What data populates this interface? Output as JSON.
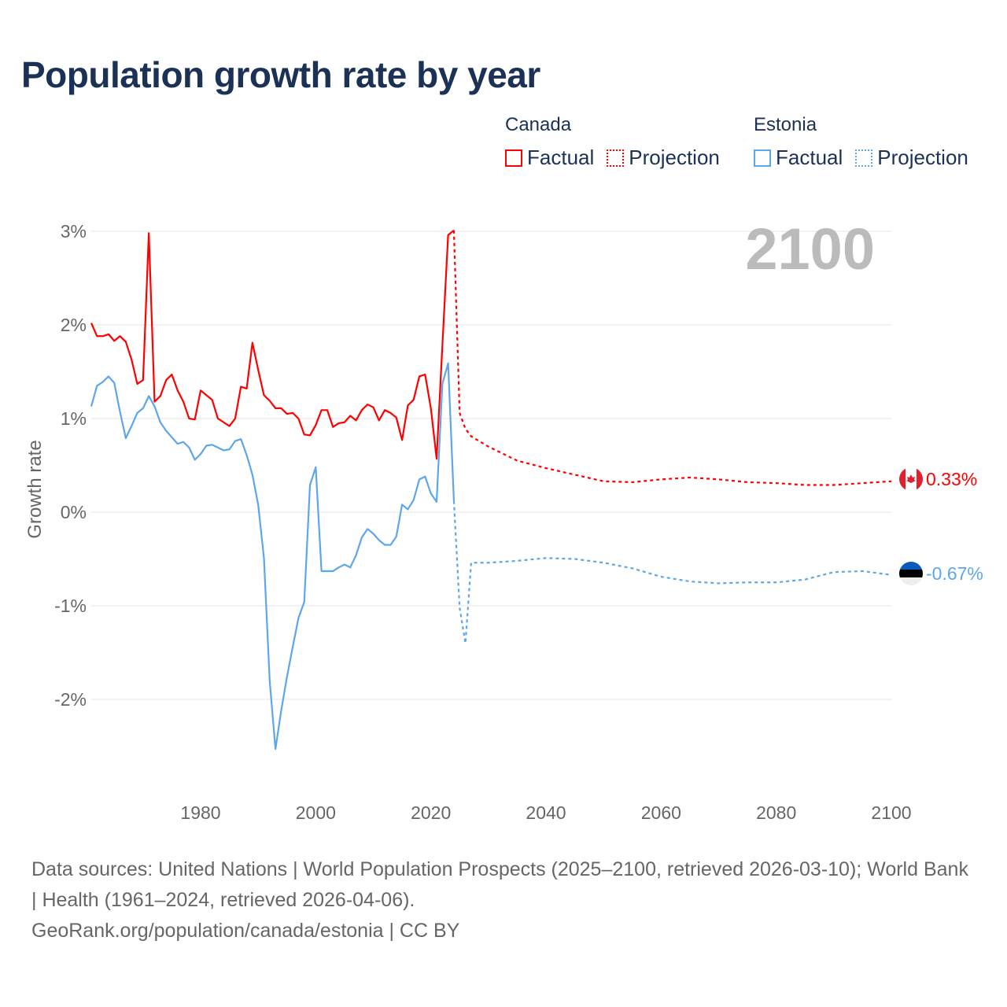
{
  "title": "Population growth rate by year",
  "legend": [
    {
      "country": "Canada",
      "color": "#ff0000",
      "factual": "Factual",
      "projection": "Projection"
    },
    {
      "country": "Estonia",
      "color": "#5ea6ea",
      "factual": "Factual",
      "projection": "Projection"
    }
  ],
  "year_label": "2100",
  "footer": {
    "sources": "Data sources: United Nations | World Population Prospects (2025–2100, retrieved 2026-03-10); World Bank | Health (1961–2024, retrieved 2026-04-06).",
    "credit": "GeoRank.org/population/canada/estonia | CC BY"
  },
  "chart_data": {
    "type": "line",
    "title": "Population growth rate by year",
    "xlabel": "",
    "ylabel": "Growth rate",
    "xlim": [
      1961,
      2100
    ],
    "ylim": [
      -3,
      3
    ],
    "xticks": [
      1980,
      2000,
      2020,
      2040,
      2060,
      2080,
      2100
    ],
    "xtick_labels": [
      "1980",
      "2000",
      "2020",
      "2040",
      "2060",
      "2080",
      "2100"
    ],
    "yticks": [
      3,
      2,
      1,
      0,
      -1,
      -2
    ],
    "ytick_labels": [
      "3%",
      "2%",
      "1%",
      "0%",
      "-1%",
      "-2%"
    ],
    "grid": true,
    "series": [
      {
        "name": "Canada",
        "color": "#ff0000",
        "end_label": "0.33%",
        "factual": {
          "start": 1961,
          "values": [
            2.02,
            1.88,
            1.88,
            1.9,
            1.83,
            1.88,
            1.82,
            1.63,
            1.37,
            1.41,
            2.98,
            1.18,
            1.24,
            1.41,
            1.47,
            1.3,
            1.18,
            1.0,
            0.99,
            1.3,
            1.25,
            1.2,
            1.0,
            0.96,
            0.92,
            1.0,
            1.34,
            1.32,
            1.81,
            1.52,
            1.25,
            1.19,
            1.11,
            1.11,
            1.05,
            1.06,
            1.0,
            0.83,
            0.82,
            0.93,
            1.09,
            1.09,
            0.91,
            0.95,
            0.96,
            1.03,
            0.98,
            1.09,
            1.15,
            1.12,
            0.98,
            1.09,
            1.06,
            1.01,
            0.77,
            1.14,
            1.2,
            1.45,
            1.47,
            1.11,
            0.57,
            1.78,
            2.96,
            3.01
          ]
        },
        "projection": {
          "x": [
            2024,
            2025,
            2026,
            2027,
            2030,
            2035,
            2040,
            2045,
            2050,
            2055,
            2060,
            2065,
            2070,
            2075,
            2080,
            2085,
            2090,
            2095,
            2100
          ],
          "values": [
            3.01,
            1.06,
            0.89,
            0.81,
            0.7,
            0.55,
            0.47,
            0.4,
            0.33,
            0.32,
            0.35,
            0.37,
            0.35,
            0.32,
            0.31,
            0.29,
            0.29,
            0.31,
            0.33
          ]
        }
      },
      {
        "name": "Estonia",
        "color": "#5ea6ea",
        "end_label": "-0.67%",
        "factual": {
          "start": 1961,
          "values": [
            1.13,
            1.35,
            1.39,
            1.45,
            1.38,
            1.07,
            0.79,
            0.92,
            1.06,
            1.11,
            1.24,
            1.13,
            0.96,
            0.87,
            0.8,
            0.73,
            0.75,
            0.69,
            0.56,
            0.62,
            0.71,
            0.72,
            0.69,
            0.66,
            0.67,
            0.76,
            0.78,
            0.61,
            0.4,
            0.08,
            -0.49,
            -1.8,
            -2.53,
            -2.12,
            -1.76,
            -1.44,
            -1.13,
            -0.96,
            0.29,
            0.48,
            -0.63,
            -0.63,
            -0.63,
            -0.59,
            -0.56,
            -0.59,
            -0.46,
            -0.27,
            -0.18,
            -0.23,
            -0.3,
            -0.35,
            -0.35,
            -0.26,
            0.08,
            0.03,
            0.13,
            0.35,
            0.38,
            0.2,
            0.11,
            1.37,
            1.59,
            0.12
          ]
        },
        "projection": {
          "x": [
            2024,
            2025,
            2026,
            2027,
            2030,
            2035,
            2040,
            2045,
            2050,
            2055,
            2060,
            2065,
            2070,
            2075,
            2080,
            2085,
            2090,
            2095,
            2100
          ],
          "values": [
            0.12,
            -1.02,
            -1.4,
            -0.54,
            -0.54,
            -0.52,
            -0.49,
            -0.5,
            -0.54,
            -0.6,
            -0.69,
            -0.74,
            -0.76,
            -0.75,
            -0.75,
            -0.72,
            -0.64,
            -0.63,
            -0.67
          ]
        }
      }
    ]
  }
}
